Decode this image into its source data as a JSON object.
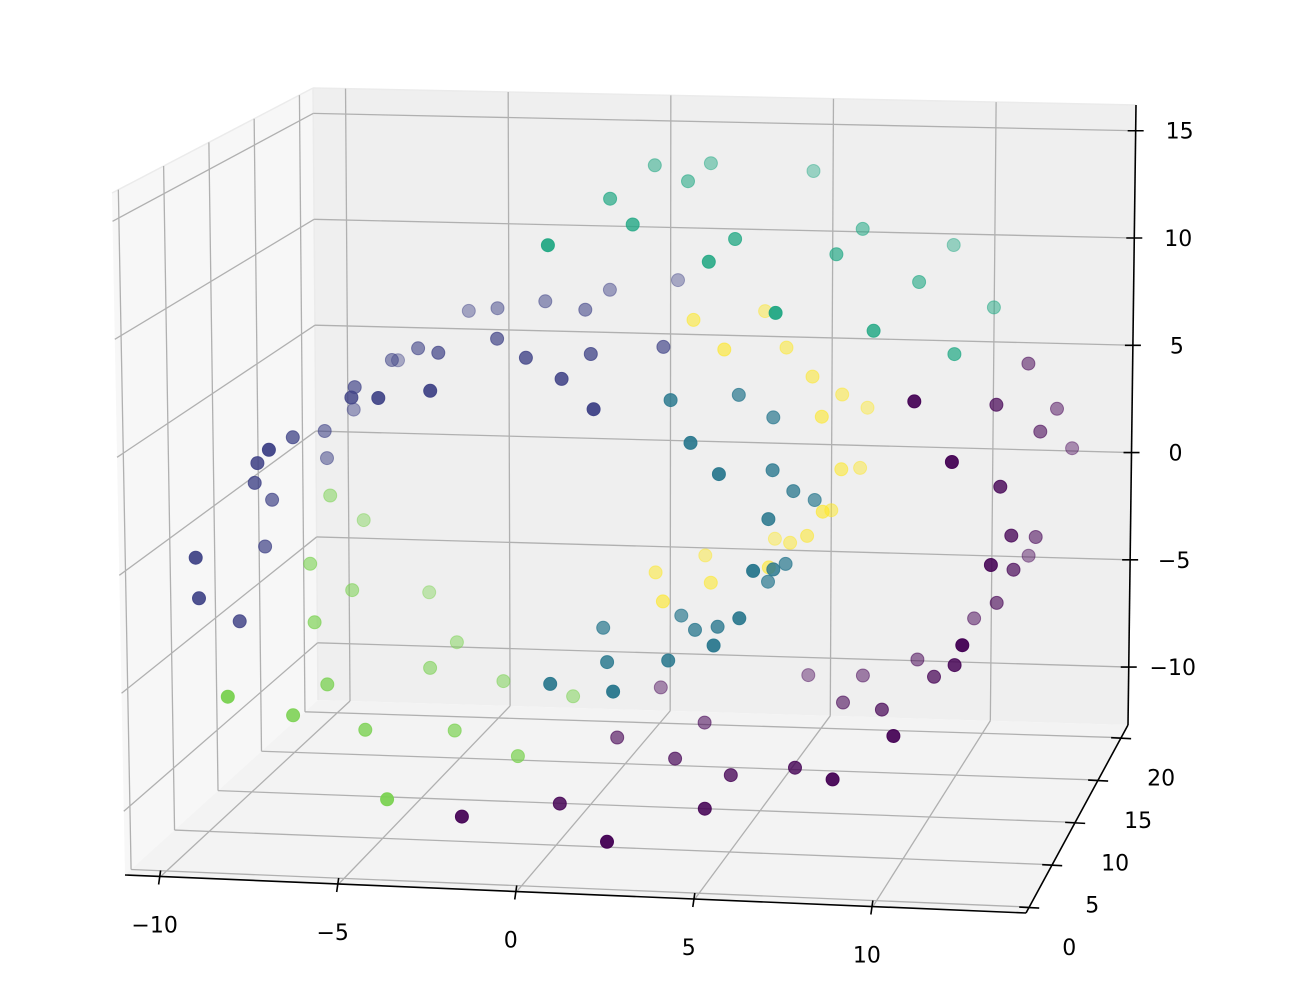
{
  "chart_data": {
    "type": "scatter",
    "projection": "3d",
    "title": "",
    "xlabel": "",
    "ylabel": "",
    "zlabel": "",
    "xlim": [
      -11,
      14.3
    ],
    "ylim": [
      -0.7,
      21.5
    ],
    "zlim": [
      -12.7,
      16.2
    ],
    "grid": true,
    "x_ticks": [
      -10,
      -5,
      0,
      5,
      10
    ],
    "y_ticks": [
      0,
      5,
      10,
      15,
      20
    ],
    "z_ticks": [
      -10,
      -5,
      0,
      5,
      10,
      15
    ],
    "x_tick_labels": [
      "−10",
      "−5",
      "0",
      "5",
      "10"
    ],
    "y_tick_labels": [
      "0",
      "5",
      "10",
      "15",
      "20"
    ],
    "z_tick_labels": [
      "−10",
      "−5",
      "0",
      "5",
      "10",
      "15"
    ],
    "cluster_colors": [
      "#440154",
      "#414487",
      "#2a788e",
      "#22a884",
      "#7ad151",
      "#fde725"
    ],
    "point_fields": [
      "x",
      "y",
      "z",
      "cluster"
    ],
    "points": [
      [
        0.42,
        2.1,
        -4.78,
        2
      ],
      [
        0.42,
        9.8,
        -4.78,
        2
      ],
      [
        0.42,
        17.4,
        -4.78,
        5
      ],
      [
        1.42,
        5.3,
        -4.79,
        2
      ],
      [
        1.42,
        13.6,
        -4.79,
        5
      ],
      [
        1.42,
        19.9,
        -4.79,
        5
      ],
      [
        2.44,
        0.8,
        -4.59,
        2
      ],
      [
        2.44,
        11.2,
        -4.59,
        2
      ],
      [
        2.44,
        15.7,
        -4.59,
        5
      ],
      [
        3.43,
        3.9,
        -4.17,
        2
      ],
      [
        3.43,
        8.1,
        -4.17,
        2
      ],
      [
        3.43,
        20.6,
        -4.17,
        5
      ],
      [
        4.34,
        6.7,
        -3.54,
        2
      ],
      [
        4.34,
        14.9,
        -3.54,
        5
      ],
      [
        4.34,
        18.3,
        -3.54,
        5
      ],
      [
        5.14,
        1.5,
        -2.69,
        2
      ],
      [
        5.14,
        10.4,
        -2.69,
        2
      ],
      [
        5.14,
        16.8,
        -2.69,
        5
      ],
      [
        5.76,
        2.1,
        -1.68,
        2
      ],
      [
        5.76,
        9.8,
        -1.68,
        2
      ],
      [
        5.76,
        17.4,
        -1.68,
        5
      ],
      [
        6.18,
        5.3,
        -0.52,
        2
      ],
      [
        6.18,
        13.6,
        -0.52,
        5
      ],
      [
        6.18,
        19.9,
        -0.52,
        5
      ],
      [
        6.36,
        0.8,
        0.75,
        2
      ],
      [
        6.36,
        11.2,
        0.75,
        2
      ],
      [
        6.36,
        15.7,
        0.75,
        5
      ],
      [
        6.27,
        3.9,
        2.06,
        2
      ],
      [
        6.27,
        8.1,
        2.06,
        2
      ],
      [
        6.27,
        20.6,
        2.06,
        5
      ],
      [
        5.91,
        6.7,
        3.36,
        2
      ],
      [
        5.91,
        14.9,
        3.36,
        5
      ],
      [
        5.91,
        18.3,
        3.36,
        5
      ],
      [
        5.28,
        1.5,
        4.6,
        2
      ],
      [
        5.28,
        10.4,
        4.6,
        2
      ],
      [
        5.28,
        16.8,
        4.6,
        5
      ],
      [
        4.38,
        2.1,
        5.72,
        2
      ],
      [
        4.38,
        9.8,
        5.72,
        2
      ],
      [
        4.38,
        17.4,
        5.72,
        5
      ],
      [
        3.24,
        5.3,
        6.65,
        2
      ],
      [
        3.24,
        13.6,
        6.65,
        5
      ],
      [
        3.24,
        19.9,
        6.65,
        5
      ],
      [
        1.91,
        0.8,
        7.36,
        1
      ],
      [
        1.91,
        11.2,
        7.36,
        1
      ],
      [
        1.91,
        15.7,
        7.36,
        5
      ],
      [
        0.42,
        3.9,
        7.79,
        1
      ],
      [
        0.42,
        8.1,
        7.79,
        1
      ],
      [
        0.42,
        20.6,
        7.79,
        1
      ],
      [
        -1.16,
        6.7,
        7.91,
        1
      ],
      [
        -1.16,
        14.9,
        7.91,
        1
      ],
      [
        -1.16,
        18.3,
        7.91,
        1
      ],
      [
        -2.78,
        1.5,
        7.72,
        1
      ],
      [
        -2.78,
        10.4,
        7.72,
        1
      ],
      [
        -2.78,
        16.8,
        7.72,
        1
      ],
      [
        -4.36,
        2.1,
        7.18,
        1
      ],
      [
        -4.36,
        9.8,
        7.18,
        1
      ],
      [
        -4.36,
        17.4,
        7.18,
        1
      ],
      [
        -5.84,
        5.3,
        6.31,
        1
      ],
      [
        -5.84,
        13.6,
        6.31,
        1
      ],
      [
        -5.84,
        19.9,
        6.31,
        1
      ],
      [
        -7.14,
        0.8,
        5.15,
        1
      ],
      [
        -7.14,
        11.2,
        5.15,
        1
      ],
      [
        -7.14,
        15.7,
        5.15,
        1
      ],
      [
        -8.2,
        3.9,
        3.71,
        1
      ],
      [
        -8.2,
        8.1,
        3.71,
        1
      ],
      [
        -8.2,
        20.6,
        3.71,
        1
      ],
      [
        -8.97,
        6.7,
        2.05,
        1
      ],
      [
        -8.97,
        14.9,
        2.05,
        1
      ],
      [
        -8.97,
        18.3,
        2.05,
        1
      ],
      [
        -9.4,
        1.5,
        0.23,
        1
      ],
      [
        -9.4,
        10.4,
        0.23,
        1
      ],
      [
        -9.4,
        16.8,
        0.23,
        1
      ],
      [
        -9.47,
        2.1,
        -1.68,
        1
      ],
      [
        -9.47,
        9.8,
        -1.68,
        1
      ],
      [
        -9.47,
        17.4,
        -1.68,
        4
      ],
      [
        -9.11,
        5.3,
        -3.6,
        1
      ],
      [
        -9.11,
        13.6,
        -3.6,
        4
      ],
      [
        -9.11,
        19.9,
        -3.6,
        4
      ],
      [
        -8.39,
        0.8,
        -5.44,
        4
      ],
      [
        -8.39,
        11.2,
        -5.44,
        4
      ],
      [
        -8.39,
        15.7,
        -5.44,
        4
      ],
      [
        -7.28,
        3.9,
        -7.14,
        4
      ],
      [
        -7.28,
        8.1,
        -7.14,
        4
      ],
      [
        -7.28,
        20.6,
        -7.14,
        4
      ],
      [
        -5.86,
        6.7,
        -8.6,
        4
      ],
      [
        -5.86,
        14.9,
        -8.6,
        4
      ],
      [
        -5.86,
        18.3,
        -8.6,
        4
      ],
      [
        -4.09,
        1.5,
        -9.78,
        4
      ],
      [
        -4.09,
        10.4,
        -9.78,
        4
      ],
      [
        -4.09,
        16.8,
        -9.78,
        4
      ],
      [
        -2.1,
        2.1,
        -10.6,
        0
      ],
      [
        -2.1,
        9.8,
        -10.6,
        4
      ],
      [
        -2.1,
        17.4,
        -10.6,
        4
      ],
      [
        0.05,
        5.3,
        -11.0,
        0
      ],
      [
        0.05,
        13.6,
        -11.0,
        0
      ],
      [
        0.05,
        19.9,
        -11.0,
        0
      ],
      [
        2.26,
        0.8,
        -10.97,
        0
      ],
      [
        2.26,
        11.2,
        -10.97,
        0
      ],
      [
        2.26,
        15.7,
        -10.97,
        0
      ],
      [
        4.48,
        3.9,
        -10.48,
        0
      ],
      [
        4.48,
        8.1,
        -10.48,
        0
      ],
      [
        4.48,
        20.6,
        -10.48,
        0
      ],
      [
        6.59,
        6.7,
        -9.55,
        0
      ],
      [
        6.59,
        14.9,
        -9.55,
        0
      ],
      [
        6.59,
        18.3,
        -9.55,
        0
      ],
      [
        8.51,
        1.5,
        -8.18,
        0
      ],
      [
        8.51,
        10.4,
        -8.18,
        0
      ],
      [
        8.51,
        16.8,
        -8.18,
        0
      ],
      [
        10.13,
        2.1,
        -6.44,
        0
      ],
      [
        10.13,
        9.8,
        -6.44,
        0
      ],
      [
        10.13,
        17.4,
        -6.44,
        0
      ],
      [
        11.39,
        5.3,
        -4.37,
        0
      ],
      [
        11.39,
        13.6,
        -4.37,
        0
      ],
      [
        11.39,
        19.9,
        -4.37,
        0
      ],
      [
        12.23,
        0.8,
        -2.06,
        0
      ],
      [
        12.23,
        11.2,
        -2.06,
        0
      ],
      [
        12.23,
        15.7,
        -2.06,
        0
      ],
      [
        12.59,
        3.9,
        0.43,
        0
      ],
      [
        12.59,
        8.1,
        0.43,
        0
      ],
      [
        12.59,
        20.6,
        0.43,
        0
      ],
      [
        12.45,
        6.7,
        2.97,
        0
      ],
      [
        12.45,
        14.9,
        2.97,
        0
      ],
      [
        12.45,
        18.3,
        2.97,
        0
      ],
      [
        11.79,
        1.5,
        5.46,
        0
      ],
      [
        11.79,
        10.4,
        5.46,
        0
      ],
      [
        11.79,
        16.8,
        5.46,
        0
      ],
      [
        10.64,
        2.1,
        7.81,
        0
      ],
      [
        10.64,
        9.8,
        7.81,
        3
      ],
      [
        10.64,
        17.4,
        7.81,
        3
      ],
      [
        9.0,
        5.3,
        9.93,
        3
      ],
      [
        9.0,
        13.6,
        9.93,
        3
      ],
      [
        9.0,
        19.9,
        9.93,
        3
      ],
      [
        6.96,
        0.8,
        11.7,
        3
      ],
      [
        6.96,
        11.2,
        11.7,
        3
      ],
      [
        6.96,
        15.7,
        11.7,
        3
      ],
      [
        4.57,
        3.9,
        13.03,
        3
      ],
      [
        4.57,
        8.1,
        13.03,
        3
      ],
      [
        4.57,
        20.6,
        13.03,
        3
      ],
      [
        1.9,
        6.7,
        13.87,
        3
      ],
      [
        1.9,
        14.9,
        13.87,
        3
      ],
      [
        1.9,
        18.3,
        13.87,
        3
      ],
      [
        0.52,
        1.5,
        14.09,
        3
      ],
      [
        0.52,
        10.4,
        14.09,
        3
      ],
      [
        0.52,
        16.8,
        14.09,
        3
      ]
    ]
  }
}
